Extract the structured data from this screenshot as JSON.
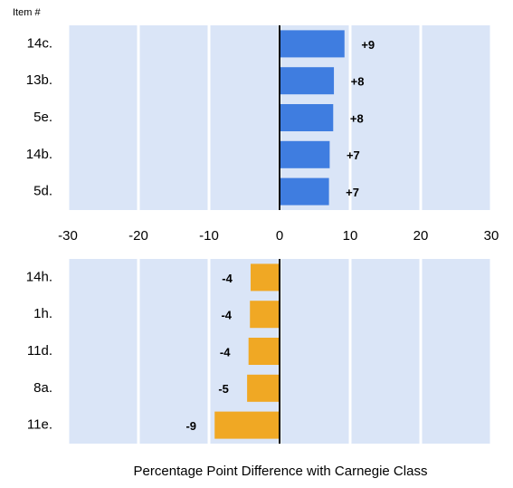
{
  "chart_data": [
    {
      "type": "bar",
      "orientation": "horizontal",
      "ylabel": "Item #",
      "categories": [
        "14c.",
        "13b.",
        "5e.",
        "14b.",
        "5d."
      ],
      "values": [
        9.2,
        7.7,
        7.6,
        7.1,
        7.0
      ],
      "value_labels": [
        "+9",
        "+8",
        "+8",
        "+7",
        "+7"
      ],
      "color": "#3f7de0",
      "xlim": [
        -30,
        30
      ],
      "xticks": [
        -30,
        -20,
        -10,
        0,
        10,
        20,
        30
      ],
      "grid": true
    },
    {
      "type": "bar",
      "orientation": "horizontal",
      "xlabel": "Percentage Point Difference with Carnegie Class",
      "categories": [
        "14h.",
        "1h.",
        "11d.",
        "8a.",
        "11e."
      ],
      "values": [
        -4.1,
        -4.2,
        -4.4,
        -4.6,
        -9.2
      ],
      "value_labels": [
        "-4",
        "-4",
        "-4",
        "-5",
        "-9"
      ],
      "color": "#f0a824",
      "xlim": [
        -30,
        30
      ],
      "grid": true
    }
  ]
}
